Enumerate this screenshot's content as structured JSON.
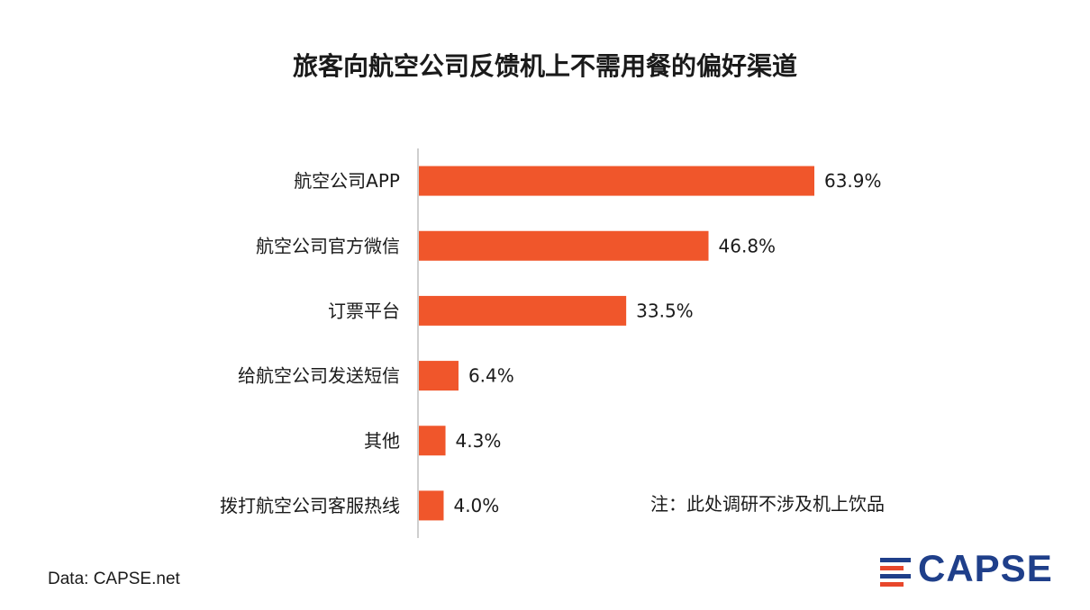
{
  "chart_data": {
    "type": "bar",
    "orientation": "horizontal",
    "title": "旅客向航空公司反馈机上不需用餐的偏好渠道",
    "categories": [
      "航空公司APP",
      "航空公司官方微信",
      "订票平台",
      "给航空公司发送短信",
      "其他",
      "拨打航空公司客服热线"
    ],
    "values": [
      63.9,
      46.8,
      33.5,
      6.4,
      4.3,
      4.0
    ],
    "value_labels": [
      "63.9%",
      "46.8%",
      "33.5%",
      "6.4%",
      "4.3%",
      "4.0%"
    ],
    "unit": "%",
    "xlim": [
      0,
      70
    ],
    "grid": false,
    "legend": "none",
    "colors": {
      "bar": "#f0562b",
      "axis": "#bfbfbf"
    }
  },
  "annotation": "注：此处调研不涉及机上饮品",
  "source": "Data: CAPSE.net",
  "logo": {
    "text": "CAPSE",
    "color": "#1f3f8a",
    "accent": "#e8472b"
  }
}
